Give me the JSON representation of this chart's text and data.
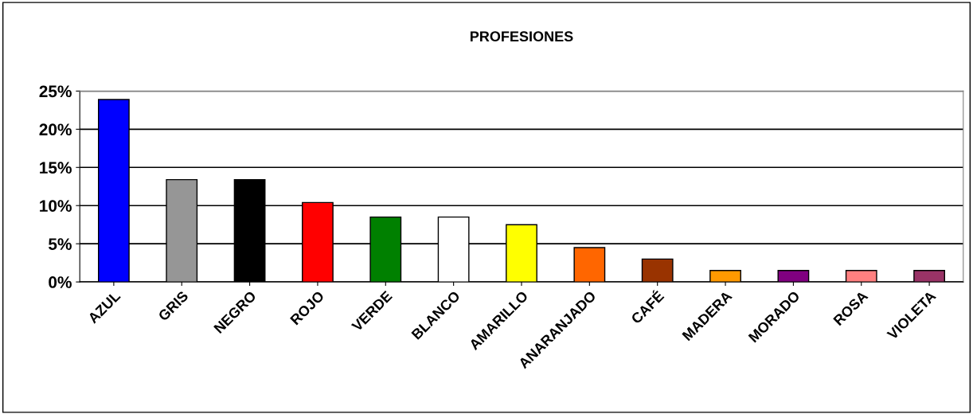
{
  "chart_data": {
    "type": "bar",
    "title": "PROFESIONES",
    "categories": [
      "AZUL",
      "GRIS",
      "NEGRO",
      "ROJO",
      "VERDE",
      "BLANCO",
      "AMARILLO",
      "ANARANJADO",
      "CAFÉ",
      "MADERA",
      "MORADO",
      "ROSA",
      "VIOLETA"
    ],
    "values": [
      23.9,
      13.4,
      13.4,
      10.4,
      8.5,
      8.5,
      7.5,
      4.5,
      3.0,
      1.5,
      1.5,
      1.5,
      1.5
    ],
    "colors": [
      "#0000ff",
      "#969696",
      "#000000",
      "#ff0000",
      "#008000",
      "#ffffff",
      "#ffff00",
      "#ff6600",
      "#993300",
      "#ff9900",
      "#800080",
      "#ff8080",
      "#993366"
    ],
    "ylim": [
      0,
      25
    ],
    "yticks": [
      {
        "value": 0,
        "label": "0%"
      },
      {
        "value": 5,
        "label": "5%"
      },
      {
        "value": 10,
        "label": "10%"
      },
      {
        "value": 15,
        "label": "15%"
      },
      {
        "value": 20,
        "label": "20%"
      },
      {
        "value": 25,
        "label": "25%"
      }
    ],
    "grid": "y",
    "legend": false
  }
}
